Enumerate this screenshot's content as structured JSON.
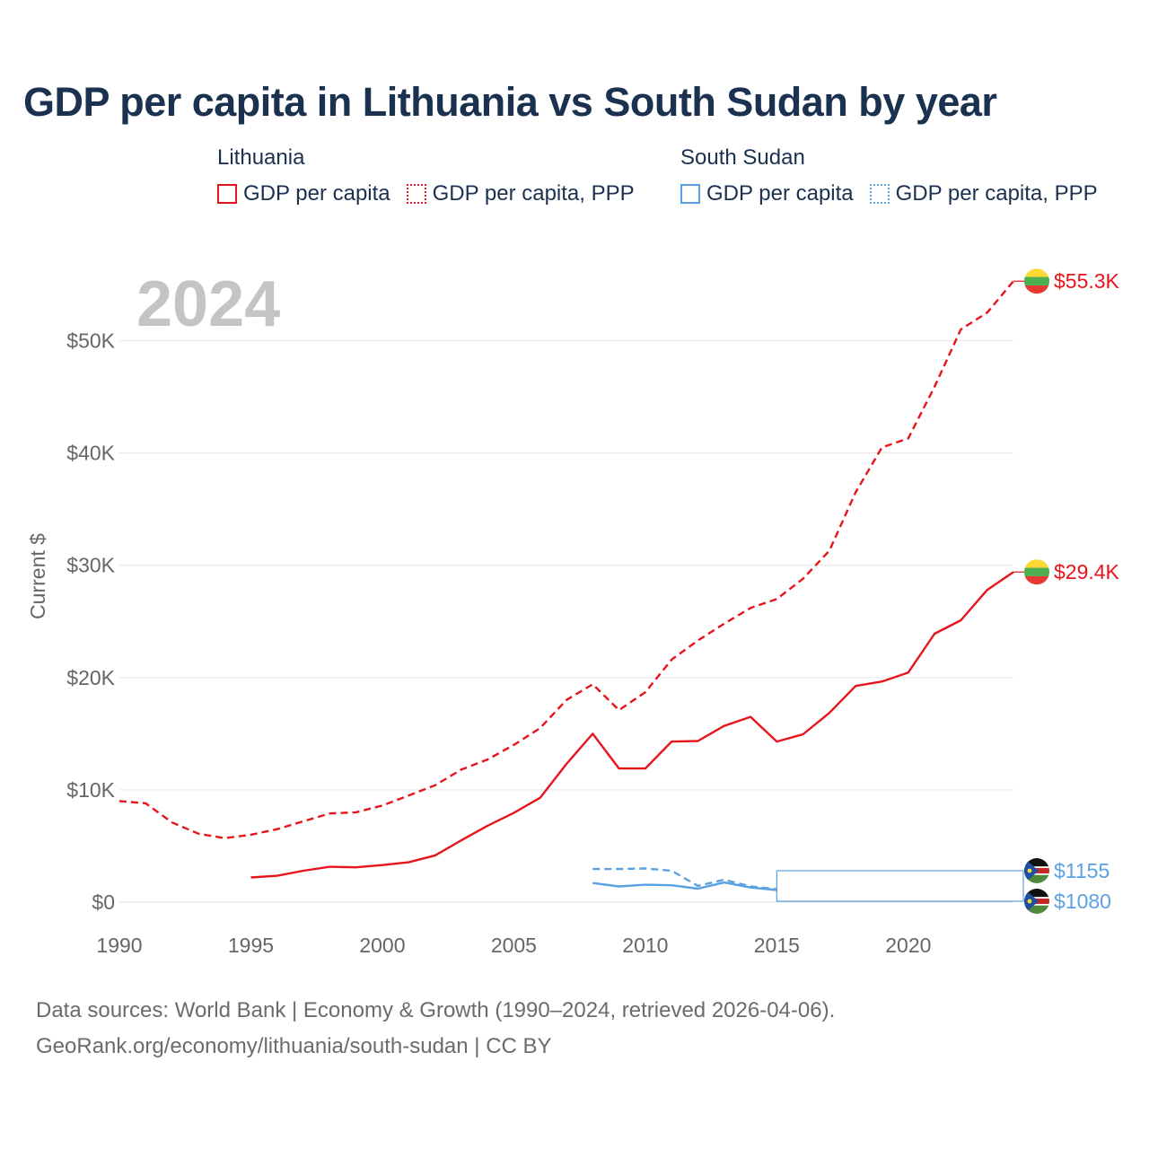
{
  "title": "GDP per capita in Lithuania vs South Sudan by year",
  "legend": {
    "groups": [
      {
        "country": "Lithuania",
        "color": "#e8141b",
        "items": [
          {
            "label": "GDP per capita",
            "style": "solid"
          },
          {
            "label": "GDP per capita, PPP",
            "style": "dotted"
          }
        ]
      },
      {
        "country": "South Sudan",
        "color": "#5aa1e3",
        "items": [
          {
            "label": "GDP per capita",
            "style": "solid"
          },
          {
            "label": "GDP per capita, PPP",
            "style": "dotted"
          }
        ]
      }
    ]
  },
  "year_overlay": "2024",
  "source": {
    "line1": "Data sources: World Bank | Economy & Growth (1990–2024, retrieved 2026-04-06).",
    "line2": "GeoRank.org/economy/lithuania/south-sudan | CC BY"
  },
  "chart_data": {
    "type": "line",
    "title": "GDP per capita in Lithuania vs South Sudan by year",
    "xlabel": "",
    "ylabel": "Current $",
    "xlim": [
      1990,
      2024
    ],
    "ylim": [
      0,
      55000
    ],
    "x_ticks": [
      1990,
      1995,
      2000,
      2005,
      2010,
      2015,
      2020
    ],
    "y_ticks": [
      0,
      10000,
      20000,
      30000,
      40000,
      50000
    ],
    "y_tick_labels": [
      "$0",
      "$10K",
      "$20K",
      "$30K",
      "$40K",
      "$50K"
    ],
    "grid": true,
    "series": [
      {
        "name": "Lithuania GDP per capita, PPP",
        "country": "Lithuania",
        "color": "#e8141b",
        "dash": "dashed",
        "end_label": "$55.3K",
        "flag": "lithuania",
        "x": [
          1990,
          1991,
          1992,
          1993,
          1994,
          1995,
          1996,
          1997,
          1998,
          1999,
          2000,
          2001,
          2002,
          2003,
          2004,
          2005,
          2006,
          2007,
          2008,
          2009,
          2010,
          2011,
          2012,
          2013,
          2014,
          2015,
          2016,
          2017,
          2018,
          2019,
          2020,
          2021,
          2022,
          2023,
          2024
        ],
        "values": [
          9000,
          8800,
          7100,
          6100,
          5700,
          6000,
          6500,
          7200,
          7900,
          8000,
          8600,
          9500,
          10400,
          11800,
          12700,
          14000,
          15500,
          18000,
          19400,
          17100,
          18700,
          21600,
          23300,
          24800,
          26200,
          27000,
          28800,
          31300,
          36500,
          40500,
          41300,
          45900,
          51000,
          52500,
          55300
        ]
      },
      {
        "name": "Lithuania GDP per capita",
        "country": "Lithuania",
        "color": "#e8141b",
        "dash": "solid",
        "end_label": "$29.4K",
        "flag": "lithuania",
        "x": [
          1995,
          1996,
          1997,
          1998,
          1999,
          2000,
          2001,
          2002,
          2003,
          2004,
          2005,
          2006,
          2007,
          2008,
          2009,
          2010,
          2011,
          2012,
          2013,
          2014,
          2015,
          2016,
          2017,
          2018,
          2019,
          2020,
          2021,
          2022,
          2023,
          2024
        ],
        "values": [
          2200,
          2350,
          2800,
          3150,
          3100,
          3300,
          3550,
          4150,
          5500,
          6800,
          7950,
          9300,
          12300,
          15000,
          11900,
          11900,
          14300,
          14350,
          15700,
          16500,
          14300,
          14950,
          16850,
          19250,
          19650,
          20450,
          23900,
          25100,
          27800,
          29400
        ]
      },
      {
        "name": "South Sudan GDP per capita, PPP",
        "country": "South Sudan",
        "color": "#5aa1e3",
        "dash": "dashed",
        "end_label": "$1155",
        "flag": "south-sudan",
        "x": [
          2008,
          2009,
          2010,
          2011,
          2012,
          2013,
          2014,
          2015
        ],
        "values": [
          2950,
          2950,
          3000,
          2800,
          1450,
          2000,
          1400,
          1155
        ]
      },
      {
        "name": "South Sudan GDP per capita",
        "country": "South Sudan",
        "color": "#5aa1e3",
        "dash": "solid",
        "end_label": "$1080",
        "flag": "south-sudan",
        "x": [
          2008,
          2009,
          2010,
          2011,
          2012,
          2013,
          2014,
          2015
        ],
        "values": [
          1700,
          1400,
          1550,
          1500,
          1200,
          1750,
          1300,
          1080
        ]
      }
    ]
  }
}
